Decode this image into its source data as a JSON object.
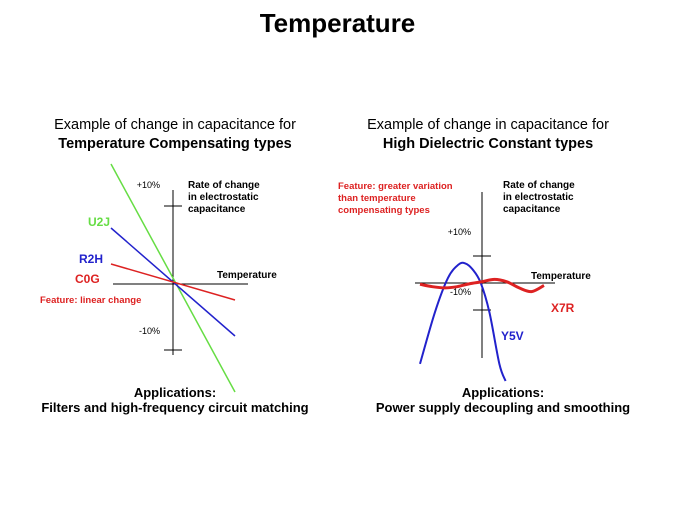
{
  "title": "Temperature",
  "left_panel": {
    "caption_line1": "Example of change in capacitance for",
    "caption_line2": "Temperature Compensating types",
    "apps_title": "Applications:",
    "apps_text": "Filters and high-frequency circuit matching"
  },
  "right_panel": {
    "caption_line1": "Example of change in capacitance for",
    "caption_line2": "High Dielectric Constant types",
    "apps_title": "Applications:",
    "apps_text": "Power supply decoupling and smoothing"
  },
  "chart_data": [
    {
      "type": "line",
      "xlabel": "Temperature",
      "ylabel": [
        "Rate of change",
        "in electrostatic",
        "capacitance"
      ],
      "ytick_labels": [
        "+10%",
        "-10%"
      ],
      "annotation": "Feature: linear change",
      "series": [
        {
          "name": "U2J",
          "color": "#66dd44",
          "x": [
            -1,
            1
          ],
          "y": [
            15,
            -13.5
          ]
        },
        {
          "name": "R2H",
          "color": "#2222cc",
          "x": [
            -1,
            1
          ],
          "y": [
            7,
            -6.5
          ]
        },
        {
          "name": "C0G",
          "color": "#dd2222",
          "x": [
            -1,
            1
          ],
          "y": [
            2.5,
            -2
          ]
        }
      ]
    },
    {
      "type": "line",
      "xlabel": "Temperature",
      "ylabel": [
        "Rate of change",
        "in electrostatic",
        "capacitance"
      ],
      "ytick_labels": [
        "+10%",
        "-10%"
      ],
      "annotation": "Feature: greater variation than temperature compensating types",
      "annotation_lines": [
        "Feature: greater variation",
        "than temperature",
        "compensating types"
      ],
      "series": [
        {
          "name": "Y5V",
          "color": "#2222cc",
          "x": [
            -1,
            -0.76,
            -0.55,
            -0.38,
            -0.27,
            -0.15,
            -0.02,
            0.12,
            0.28,
            0.38
          ],
          "y": [
            -33,
            -12,
            2,
            7.5,
            8,
            5.5,
            0,
            -12,
            -33,
            -40
          ]
        },
        {
          "name": "X7R",
          "color": "#dd2222",
          "x": [
            -1,
            -0.8,
            -0.6,
            -0.4,
            -0.2,
            0,
            0.2,
            0.4,
            0.6,
            0.8,
            1
          ],
          "y": [
            -0.5,
            -1.5,
            -2,
            -1.5,
            -0.3,
            0.5,
            1.5,
            0.5,
            -2,
            -3.5,
            -1
          ]
        }
      ]
    }
  ]
}
